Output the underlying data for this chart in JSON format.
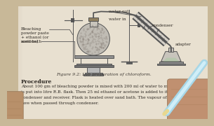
{
  "bg_outer": "#c8b898",
  "page_color_left": "#ddd5c0",
  "page_color_right": "#e8e0d0",
  "diagram_color": "#555555",
  "diagram_light": "#aaaaaa",
  "title_text": "Figure 9.2: Lab preparation of chloroform.",
  "procedure_title": "Procedure",
  "procedure_lines": [
    "About 100 gm of bleaching powder is mixed with 200 ml of water to make paste which",
    "is put into litre R.B. flask. Then 25 ml ethanol or acetone is added to it. Flask is fitte",
    "condenser and receiver. Flask is heated over sand bath. The vapour of CHCl₃ and water c",
    "lave when passed through condenser."
  ],
  "label_bleaching": "Bleaching\npowder paste\n+ ethanol (or\nacetone)",
  "label_sandbath": "sand bath",
  "label_water_in_top": "water out",
  "label_condenser": "condenser",
  "label_adapter": "adapter",
  "label_water_in": "water in",
  "left_skin": "#b8906a",
  "right_skin": "#c09070",
  "pencil_body": "#a8d8e8",
  "pencil_highlight": "#d0eef8",
  "pencil_tip": "#e8d890",
  "text_color": "#2a2520",
  "caption_color": "#3a3530"
}
